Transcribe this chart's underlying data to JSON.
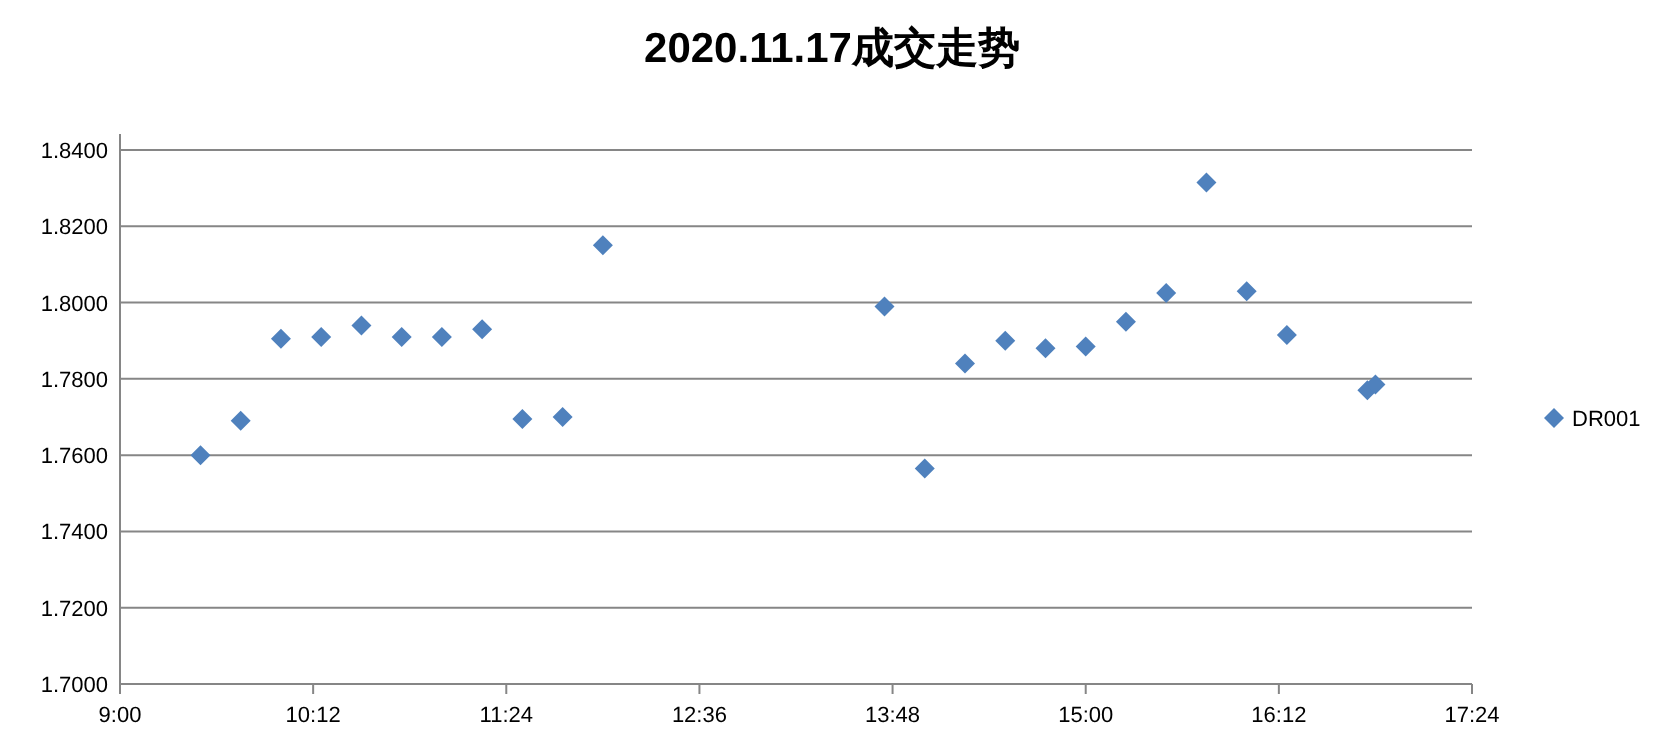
{
  "chart_data": {
    "type": "scatter",
    "title": "2020.11.17成交走势",
    "x": [
      9.5,
      9.75,
      10.0,
      10.25,
      10.5,
      10.75,
      11.0,
      11.25,
      11.5,
      11.75,
      12.0,
      13.75,
      14.0,
      14.25,
      14.5,
      14.75,
      15.0,
      15.25,
      15.5,
      15.75,
      16.0,
      16.25,
      16.75,
      16.8
    ],
    "series": [
      {
        "name": "DR001",
        "color": "#4f81bd",
        "values": [
          1.76,
          1.769,
          1.7905,
          1.791,
          1.794,
          1.791,
          1.791,
          1.793,
          1.7695,
          1.77,
          1.815,
          1.799,
          1.7565,
          1.784,
          1.79,
          1.788,
          1.7885,
          1.795,
          1.8025,
          1.8315,
          1.803,
          1.7915,
          1.777,
          1.7785
        ]
      }
    ],
    "xlim": [
      9,
      17.4
    ],
    "ylim": [
      1.7,
      1.84
    ],
    "xticks": [
      {
        "value": 9,
        "label": "9:00"
      },
      {
        "value": 10.2,
        "label": "10:12"
      },
      {
        "value": 11.4,
        "label": "11:24"
      },
      {
        "value": 12.6,
        "label": "12:36"
      },
      {
        "value": 13.8,
        "label": "13:48"
      },
      {
        "value": 15,
        "label": "15:00"
      },
      {
        "value": 16.2,
        "label": "16:12"
      },
      {
        "value": 17.4,
        "label": "17:24"
      }
    ],
    "yticks": [
      {
        "value": 1.7,
        "label": "1.7000"
      },
      {
        "value": 1.72,
        "label": "1.7200"
      },
      {
        "value": 1.74,
        "label": "1.7400"
      },
      {
        "value": 1.76,
        "label": "1.7600"
      },
      {
        "value": 1.78,
        "label": "1.7800"
      },
      {
        "value": 1.8,
        "label": "1.8000"
      },
      {
        "value": 1.82,
        "label": "1.8200"
      },
      {
        "value": 1.84,
        "label": "1.8400"
      }
    ],
    "grid": "y",
    "legend": "right",
    "marker": "diamond"
  }
}
